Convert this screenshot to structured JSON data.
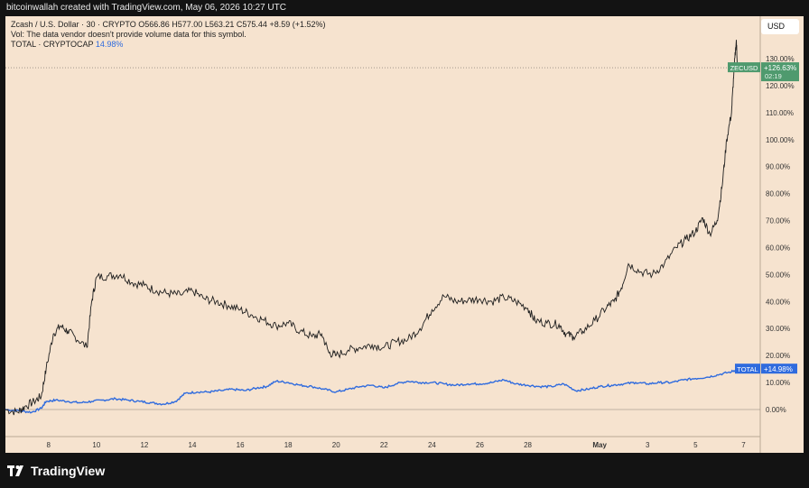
{
  "header": {
    "attribution": "bitcoinwallah created with TradingView.com, May 06, 2026 10:27 UTC"
  },
  "legend": {
    "symbol": "Zcash / U.S. Dollar · 30 · CRYPTO",
    "open": "O566.86",
    "high": "H577.00",
    "low": "L563.21",
    "close": "C575.44",
    "change": "+8.59 (+1.52%)",
    "vol_note": "Vol: The data vendor doesn't provide volume data for this symbol.",
    "total_name": "TOTAL · CRYPTOCAP",
    "total_value": "14.98%"
  },
  "currency_button": "USD",
  "footer": {
    "brand": "TradingView"
  },
  "colors": {
    "zec_line": "#1e1e1e",
    "total_line": "#2f6bde",
    "zec_badge": "#4f9a6e",
    "total_badge": "#2f6bde",
    "background": "#f6e3cf"
  },
  "chart_data": {
    "type": "line",
    "x_ticks": [
      "8",
      "10",
      "12",
      "14",
      "16",
      "18",
      "20",
      "22",
      "24",
      "26",
      "28",
      "May",
      "3",
      "5",
      "7"
    ],
    "y_ticks": [
      "130.00%",
      "120.00%",
      "110.00%",
      "100.00%",
      "90.00%",
      "80.00%",
      "70.00%",
      "60.00%",
      "50.00%",
      "40.00%",
      "30.00%",
      "20.00%",
      "10.00%",
      "0.00%"
    ],
    "ylim": [
      -15,
      135
    ],
    "x_range_days": [
      6.2,
      37.7
    ],
    "series": [
      {
        "name": "ZECUSD",
        "last_label": "+126.63%",
        "countdown": "02:19",
        "points": [
          [
            6.2,
            0.0
          ],
          [
            6.7,
            -1.0
          ],
          [
            7.0,
            1.0
          ],
          [
            7.4,
            3.0
          ],
          [
            7.7,
            5.0
          ],
          [
            7.9,
            15.0
          ],
          [
            8.2,
            28.0
          ],
          [
            8.5,
            31.0
          ],
          [
            8.8,
            29.0
          ],
          [
            9.1,
            27.0
          ],
          [
            9.6,
            23.0
          ],
          [
            9.8,
            40.0
          ],
          [
            10.0,
            49.0
          ],
          [
            10.5,
            49.5
          ],
          [
            11.0,
            50.0
          ],
          [
            11.5,
            47.0
          ],
          [
            12.0,
            46.0
          ],
          [
            12.5,
            44.0
          ],
          [
            13.0,
            43.0
          ],
          [
            13.5,
            42.5
          ],
          [
            14.0,
            44.0
          ],
          [
            14.5,
            41.0
          ],
          [
            15.0,
            40.0
          ],
          [
            15.5,
            38.5
          ],
          [
            16.0,
            37.0
          ],
          [
            16.5,
            35.0
          ],
          [
            17.0,
            33.0
          ],
          [
            17.5,
            31.0
          ],
          [
            18.0,
            32.0
          ],
          [
            18.5,
            29.0
          ],
          [
            19.0,
            27.0
          ],
          [
            19.4,
            28.0
          ],
          [
            19.7,
            21.0
          ],
          [
            20.0,
            20.0
          ],
          [
            20.5,
            22.0
          ],
          [
            21.0,
            23.0
          ],
          [
            21.5,
            24.0
          ],
          [
            22.0,
            23.0
          ],
          [
            22.5,
            25.0
          ],
          [
            23.0,
            26.0
          ],
          [
            23.5,
            30.0
          ],
          [
            24.0,
            37.0
          ],
          [
            24.5,
            42.0
          ],
          [
            25.0,
            40.0
          ],
          [
            25.5,
            40.5
          ],
          [
            26.0,
            41.0
          ],
          [
            26.5,
            40.0
          ],
          [
            27.0,
            41.5
          ],
          [
            27.5,
            40.0
          ],
          [
            28.0,
            37.5
          ],
          [
            28.3,
            33.0
          ],
          [
            28.8,
            32.0
          ],
          [
            29.3,
            31.5
          ],
          [
            29.6,
            28.0
          ],
          [
            29.9,
            27.0
          ],
          [
            30.3,
            29.0
          ],
          [
            30.8,
            33.0
          ],
          [
            31.3,
            38.0
          ],
          [
            31.6,
            40.0
          ],
          [
            31.9,
            45.0
          ],
          [
            32.2,
            54.0
          ],
          [
            32.7,
            51.0
          ],
          [
            33.2,
            50.0
          ],
          [
            33.7,
            54.0
          ],
          [
            34.2,
            60.0
          ],
          [
            34.6,
            63.0
          ],
          [
            35.0,
            66.0
          ],
          [
            35.3,
            71.0
          ],
          [
            35.6,
            65.0
          ],
          [
            35.9,
            70.0
          ],
          [
            36.1,
            82.0
          ],
          [
            36.3,
            100.0
          ],
          [
            36.5,
            110.0
          ],
          [
            36.6,
            125.0
          ],
          [
            36.7,
            137.0
          ],
          [
            36.75,
            126.63
          ]
        ]
      },
      {
        "name": "TOTAL",
        "last_label": "+14.98%",
        "points": [
          [
            6.2,
            0.0
          ],
          [
            6.8,
            -0.5
          ],
          [
            7.3,
            -1.0
          ],
          [
            7.7,
            0.5
          ],
          [
            7.9,
            3.0
          ],
          [
            8.3,
            3.5
          ],
          [
            8.8,
            3.0
          ],
          [
            9.3,
            2.5
          ],
          [
            9.8,
            3.0
          ],
          [
            10.3,
            3.5
          ],
          [
            10.8,
            4.0
          ],
          [
            11.3,
            3.5
          ],
          [
            11.8,
            3.0
          ],
          [
            12.3,
            2.5
          ],
          [
            12.8,
            2.0
          ],
          [
            13.3,
            3.0
          ],
          [
            13.7,
            6.0
          ],
          [
            14.2,
            6.5
          ],
          [
            14.7,
            6.5
          ],
          [
            15.2,
            7.0
          ],
          [
            15.7,
            7.5
          ],
          [
            16.2,
            7.0
          ],
          [
            16.7,
            8.0
          ],
          [
            17.1,
            8.5
          ],
          [
            17.5,
            10.5
          ],
          [
            18.0,
            10.0
          ],
          [
            18.5,
            9.0
          ],
          [
            19.0,
            8.5
          ],
          [
            19.5,
            7.5
          ],
          [
            20.0,
            6.5
          ],
          [
            20.5,
            7.5
          ],
          [
            21.0,
            8.5
          ],
          [
            21.5,
            9.0
          ],
          [
            22.0,
            8.0
          ],
          [
            22.5,
            9.5
          ],
          [
            23.0,
            10.5
          ],
          [
            23.5,
            10.0
          ],
          [
            24.0,
            10.0
          ],
          [
            24.5,
            9.5
          ],
          [
            25.0,
            9.0
          ],
          [
            25.5,
            9.5
          ],
          [
            26.0,
            9.5
          ],
          [
            26.5,
            10.0
          ],
          [
            27.0,
            11.0
          ],
          [
            27.5,
            9.5
          ],
          [
            28.0,
            9.0
          ],
          [
            28.5,
            8.5
          ],
          [
            29.0,
            8.5
          ],
          [
            29.5,
            9.5
          ],
          [
            30.0,
            7.0
          ],
          [
            30.5,
            7.5
          ],
          [
            31.0,
            8.5
          ],
          [
            31.5,
            9.0
          ],
          [
            32.0,
            9.5
          ],
          [
            32.5,
            10.0
          ],
          [
            33.0,
            9.5
          ],
          [
            33.5,
            10.0
          ],
          [
            34.0,
            10.0
          ],
          [
            34.5,
            11.0
          ],
          [
            35.0,
            11.5
          ],
          [
            35.5,
            12.0
          ],
          [
            36.0,
            13.0
          ],
          [
            36.5,
            14.0
          ],
          [
            36.75,
            14.98
          ]
        ]
      }
    ]
  }
}
